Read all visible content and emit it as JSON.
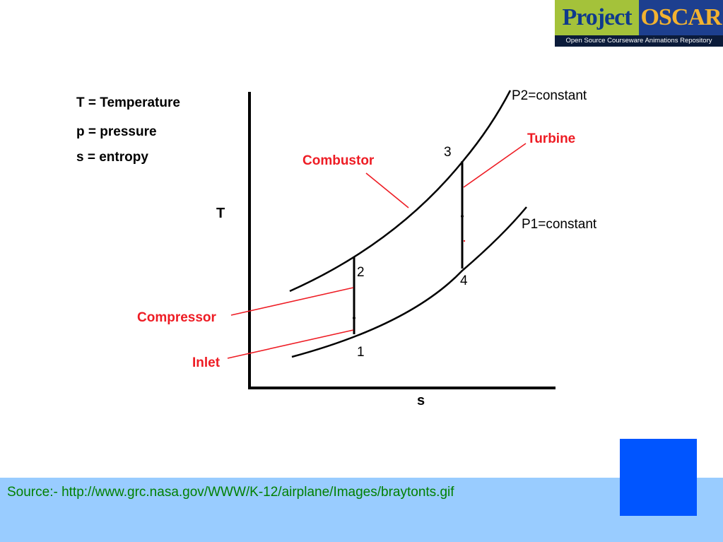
{
  "logo": {
    "word1": "Project",
    "word2": "OSCAR",
    "tagline": "Open Source Courseware Animations Repository",
    "colors": {
      "green": "#a4c23a",
      "navy": "#1d3f8f",
      "gold": "#f2b230"
    }
  },
  "legend": {
    "line1": "T = Temperature",
    "line2": "p = pressure",
    "line3": "s = entropy"
  },
  "axes": {
    "y_label": "T",
    "x_label": "s"
  },
  "curves": {
    "upper_label": "P2=constant",
    "lower_label": "P1=constant"
  },
  "points": {
    "p1": "1",
    "p2": "2",
    "p3": "3",
    "p4": "4"
  },
  "components": {
    "combustor": "Combustor",
    "turbine": "Turbine",
    "compressor": "Compressor",
    "inlet": "Inlet",
    "color": "#ee1c24"
  },
  "footer": {
    "source": "Source:- http://www.grc.nasa.gov/WWW/K-12/airplane/Images/braytonts.gif"
  }
}
